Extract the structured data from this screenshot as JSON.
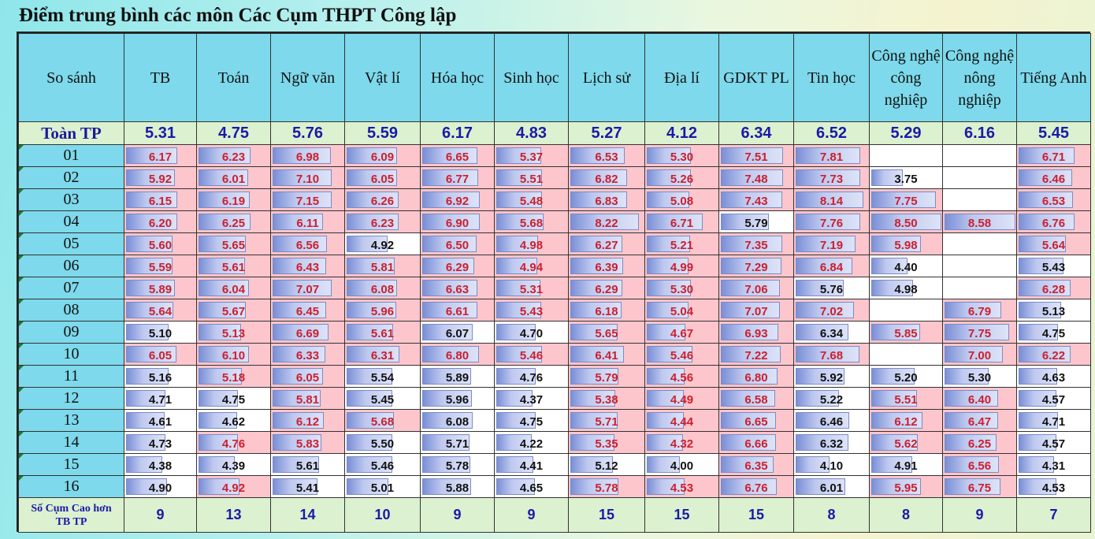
{
  "title": "Điểm trung bình các môn Các Cụm THPT Công lập",
  "chart_data": {
    "type": "table",
    "corner_label": "So sánh",
    "columns": [
      "TB",
      "Toán",
      "Ngữ văn",
      "Vật lí",
      "Hóa học",
      "Sinh học",
      "Lịch sử",
      "Địa lí",
      "GDKT PL",
      "Tin học",
      "Công nghệ công nghiệp",
      "Công nghệ nông nghiệp",
      "Tiếng Anh"
    ],
    "city_label": "Toàn TP",
    "city_avg": [
      "5.31",
      "4.75",
      "5.76",
      "5.59",
      "6.17",
      "4.83",
      "5.27",
      "4.12",
      "6.34",
      "6.52",
      "5.29",
      "6.16",
      "5.45"
    ],
    "rows": [
      {
        "cluster": "01",
        "values": [
          "6.17",
          "6.23",
          "6.98",
          "6.09",
          "6.65",
          "5.37",
          "6.53",
          "5.30",
          "7.51",
          "7.81",
          "",
          "",
          "6.71"
        ]
      },
      {
        "cluster": "02",
        "values": [
          "5.92",
          "6.01",
          "7.10",
          "6.05",
          "6.77",
          "5.51",
          "6.82",
          "5.26",
          "7.48",
          "7.73",
          "3.75",
          "",
          "6.46"
        ]
      },
      {
        "cluster": "03",
        "values": [
          "6.15",
          "6.19",
          "7.15",
          "6.26",
          "6.92",
          "5.48",
          "6.83",
          "5.08",
          "7.43",
          "8.14",
          "7.75",
          "",
          "6.53"
        ]
      },
      {
        "cluster": "04",
        "values": [
          "6.20",
          "6.25",
          "6.11",
          "6.23",
          "6.90",
          "5.68",
          "8.22",
          "6.71",
          "5.79",
          "7.76",
          "8.50",
          "8.58",
          "6.76"
        ]
      },
      {
        "cluster": "05",
        "values": [
          "5.60",
          "5.65",
          "6.56",
          "4.92",
          "6.50",
          "4.98",
          "6.27",
          "5.21",
          "7.35",
          "7.19",
          "5.98",
          "",
          "5.64"
        ]
      },
      {
        "cluster": "06",
        "values": [
          "5.59",
          "5.61",
          "6.43",
          "5.81",
          "6.29",
          "4.94",
          "6.39",
          "4.99",
          "7.29",
          "6.84",
          "4.40",
          "",
          "5.43"
        ]
      },
      {
        "cluster": "07",
        "values": [
          "5.89",
          "6.04",
          "7.07",
          "6.08",
          "6.63",
          "5.31",
          "6.29",
          "5.30",
          "7.06",
          "5.76",
          "4.98",
          "",
          "6.28"
        ]
      },
      {
        "cluster": "08",
        "values": [
          "5.64",
          "5.67",
          "6.45",
          "5.96",
          "6.61",
          "5.43",
          "6.18",
          "5.04",
          "7.07",
          "7.02",
          "",
          "6.79",
          "5.13"
        ]
      },
      {
        "cluster": "09",
        "values": [
          "5.10",
          "5.13",
          "6.69",
          "5.61",
          "6.07",
          "4.70",
          "5.65",
          "4.67",
          "6.93",
          "6.34",
          "5.85",
          "7.75",
          "4.75"
        ]
      },
      {
        "cluster": "10",
        "values": [
          "6.05",
          "6.10",
          "6.33",
          "6.31",
          "6.80",
          "5.46",
          "6.41",
          "5.46",
          "7.22",
          "7.68",
          "",
          "7.00",
          "6.22"
        ]
      },
      {
        "cluster": "11",
        "values": [
          "5.16",
          "5.18",
          "6.05",
          "5.54",
          "5.89",
          "4.76",
          "5.79",
          "4.56",
          "6.80",
          "5.92",
          "5.20",
          "5.30",
          "4.63"
        ]
      },
      {
        "cluster": "12",
        "values": [
          "4.71",
          "4.75",
          "5.81",
          "5.45",
          "5.96",
          "4.37",
          "5.38",
          "4.49",
          "6.58",
          "5.22",
          "5.51",
          "6.40",
          "4.57"
        ]
      },
      {
        "cluster": "13",
        "values": [
          "4.61",
          "4.62",
          "6.12",
          "5.68",
          "6.08",
          "4.75",
          "5.71",
          "4.44",
          "6.65",
          "6.46",
          "6.12",
          "6.47",
          "4.71"
        ]
      },
      {
        "cluster": "14",
        "values": [
          "4.73",
          "4.76",
          "5.83",
          "5.50",
          "5.71",
          "4.22",
          "5.35",
          "4.32",
          "6.66",
          "6.32",
          "5.62",
          "6.25",
          "4.57"
        ]
      },
      {
        "cluster": "15",
        "values": [
          "4.38",
          "4.39",
          "5.61",
          "5.46",
          "5.78",
          "4.41",
          "5.12",
          "4.00",
          "6.35",
          "4.10",
          "4.91",
          "6.56",
          "4.31"
        ]
      },
      {
        "cluster": "16",
        "values": [
          "4.90",
          "4.92",
          "5.41",
          "5.01",
          "5.88",
          "4.65",
          "5.78",
          "4.53",
          "6.76",
          "6.01",
          "5.95",
          "6.75",
          "4.53"
        ]
      }
    ],
    "footer_label": "Số Cụm Cao hơn TB TP",
    "footer_values": [
      "9",
      "13",
      "14",
      "10",
      "9",
      "9",
      "15",
      "15",
      "15",
      "8",
      "8",
      "9",
      "7"
    ],
    "colors": {
      "header_bg": "#7dd9eb",
      "city_row_bg": "#dcf1cf",
      "above_avg_bg": "#fdc6cc",
      "above_avg_text": "#cc1f2f",
      "below_avg_text": "#111111",
      "bar": "#9aaae3",
      "accent_text": "#1a1aa8"
    }
  }
}
